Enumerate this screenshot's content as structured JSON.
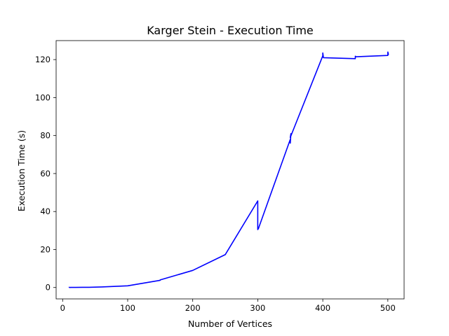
{
  "chart_data": {
    "type": "line",
    "title": "Karger Stein - Execution Time",
    "xlabel": "Number of Vertices",
    "ylabel": "Execution Time (s)",
    "xlim": [
      -10,
      525
    ],
    "ylim": [
      -6,
      130
    ],
    "x_ticks": [
      0,
      100,
      200,
      300,
      400,
      500
    ],
    "y_ticks": [
      0,
      20,
      40,
      60,
      80,
      100,
      120
    ],
    "grid": false,
    "legend": "none",
    "series": [
      {
        "color": "#0000ff",
        "x": [
          10,
          10,
          11,
          12,
          20,
          30,
          40,
          50,
          60,
          100,
          150,
          150,
          200,
          250,
          300,
          300,
          301,
          350,
          350,
          351,
          350,
          400,
          400,
          401,
          450,
          450,
          451,
          500,
          500,
          501
        ],
        "y": [
          0.0,
          0.1,
          0.0,
          0.05,
          0.05,
          0.1,
          0.1,
          0.2,
          0.3,
          0.9,
          3.8,
          4.0,
          9.0,
          17.3,
          45.6,
          30.5,
          31.0,
          78.0,
          76.0,
          81.0,
          79.0,
          122.0,
          123.5,
          121.0,
          120.5,
          121.8,
          121.5,
          122.2,
          124.0,
          122.5
        ]
      }
    ]
  }
}
